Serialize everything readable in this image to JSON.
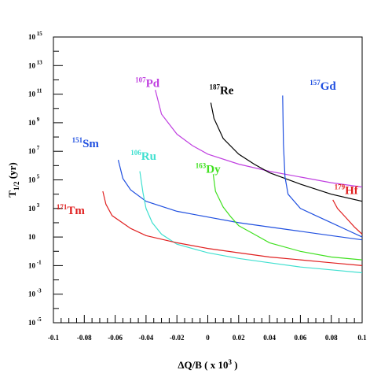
{
  "chart_data": {
    "type": "line",
    "xlabel": "ΔQ/B  ( x 10",
    "xlabel_sup": "3",
    "xlabel_end": ")",
    "ylabel": "T",
    "ylabel_sub": "1/2",
    "ylabel_end": " (yr)",
    "xlim": [
      -0.1,
      0.1
    ],
    "ylim_log10": [
      -5,
      15
    ],
    "log_y": true,
    "grid": false,
    "x_ticks": [
      {
        "v": -0.1,
        "label": "-0.1"
      },
      {
        "v": -0.08,
        "label": "-0.08"
      },
      {
        "v": -0.06,
        "label": "-0.06"
      },
      {
        "v": -0.04,
        "label": "-0.04"
      },
      {
        "v": -0.02,
        "label": "-0.02"
      },
      {
        "v": 0,
        "label": "0"
      },
      {
        "v": 0.02,
        "label": "0.02"
      },
      {
        "v": 0.04,
        "label": "0.04"
      },
      {
        "v": 0.06,
        "label": "0.06"
      },
      {
        "v": 0.08,
        "label": "0.08"
      },
      {
        "v": 0.1,
        "label": "0.1"
      }
    ],
    "y_ticks": [
      {
        "e": 15,
        "base": "10",
        "exp": "15"
      },
      {
        "e": 13,
        "base": "10",
        "exp": "13"
      },
      {
        "e": 11,
        "base": "10",
        "exp": "11"
      },
      {
        "e": 9,
        "base": "10",
        "exp": "9"
      },
      {
        "e": 7,
        "base": "10",
        "exp": "7"
      },
      {
        "e": 5,
        "base": "10",
        "exp": "5"
      },
      {
        "e": 3,
        "base": "10",
        "exp": "3"
      },
      {
        "e": 1,
        "base": "10",
        "exp": ""
      },
      {
        "e": -1,
        "base": "10",
        "exp": "-1"
      },
      {
        "e": -3,
        "base": "10",
        "exp": "-3"
      },
      {
        "e": -5,
        "base": "10",
        "exp": "-5"
      }
    ],
    "series": [
      {
        "mass": "107",
        "element": "Pd",
        "color": "#c040e0",
        "label_at": [
          -0.047,
          11.5
        ],
        "points": [
          [
            -0.034,
            11.3
          ],
          [
            -0.03,
            9.6
          ],
          [
            -0.02,
            8.2
          ],
          [
            -0.01,
            7.4
          ],
          [
            0,
            6.8
          ],
          [
            0.02,
            6.1
          ],
          [
            0.04,
            5.6
          ],
          [
            0.06,
            5.2
          ],
          [
            0.08,
            4.8
          ],
          [
            0.1,
            4.5
          ]
        ]
      },
      {
        "mass": "187",
        "element": "Re",
        "color": "#000000",
        "label_at": [
          0.001,
          11.0
        ],
        "points": [
          [
            0.002,
            10.4
          ],
          [
            0.004,
            9.3
          ],
          [
            0.01,
            7.9
          ],
          [
            0.02,
            6.8
          ],
          [
            0.03,
            6.1
          ],
          [
            0.04,
            5.5
          ],
          [
            0.06,
            4.7
          ],
          [
            0.08,
            4.0
          ],
          [
            0.1,
            3.5
          ]
        ]
      },
      {
        "mass": "157",
        "element": "Gd",
        "color": "#2050e0",
        "label_at": [
          0.066,
          11.3
        ],
        "points": [
          [
            0.0485,
            10.9
          ],
          [
            0.049,
            7.5
          ],
          [
            0.05,
            5.2
          ],
          [
            0.052,
            4.0
          ],
          [
            0.06,
            3.0
          ],
          [
            0.07,
            2.5
          ],
          [
            0.08,
            2.0
          ],
          [
            0.09,
            1.5
          ],
          [
            0.1,
            1.0
          ]
        ]
      },
      {
        "mass": "179",
        "element": "Hf",
        "color": "#e02020",
        "label_at": [
          0.082,
          4.0
        ],
        "points": [
          [
            0.081,
            3.6
          ],
          [
            0.084,
            3.0
          ],
          [
            0.09,
            2.3
          ],
          [
            0.095,
            1.7
          ],
          [
            0.1,
            1.2
          ]
        ]
      },
      {
        "mass": "151",
        "element": "Sm",
        "color": "#2050e0",
        "label_at": [
          -0.088,
          7.3
        ],
        "points": [
          [
            -0.058,
            6.4
          ],
          [
            -0.055,
            5.1
          ],
          [
            -0.05,
            4.3
          ],
          [
            -0.04,
            3.5
          ],
          [
            -0.02,
            2.8
          ],
          [
            0,
            2.4
          ],
          [
            0.02,
            2.0
          ],
          [
            0.04,
            1.7
          ],
          [
            0.06,
            1.4
          ],
          [
            0.08,
            1.1
          ],
          [
            0.1,
            0.8
          ]
        ]
      },
      {
        "mass": "106",
        "element": "Ru",
        "color": "#40e0d0",
        "label_at": [
          -0.05,
          6.4
        ],
        "points": [
          [
            -0.044,
            5.6
          ],
          [
            -0.042,
            4.1
          ],
          [
            -0.04,
            3.0
          ],
          [
            -0.036,
            2.0
          ],
          [
            -0.03,
            1.2
          ],
          [
            -0.02,
            0.5
          ],
          [
            0,
            -0.1
          ],
          [
            0.02,
            -0.5
          ],
          [
            0.04,
            -0.8
          ],
          [
            0.06,
            -1.1
          ],
          [
            0.08,
            -1.3
          ],
          [
            0.1,
            -1.5
          ]
        ]
      },
      {
        "mass": "163",
        "element": "Dy",
        "color": "#40e020",
        "label_at": [
          -0.008,
          5.5
        ],
        "points": [
          [
            0.0035,
            5.4
          ],
          [
            0.005,
            4.2
          ],
          [
            0.01,
            3.1
          ],
          [
            0.015,
            2.4
          ],
          [
            0.02,
            1.8
          ],
          [
            0.03,
            1.2
          ],
          [
            0.04,
            0.6
          ],
          [
            0.06,
            0.0
          ],
          [
            0.08,
            -0.4
          ],
          [
            0.1,
            -0.6
          ]
        ]
      },
      {
        "mass": "171",
        "element": "Tm",
        "color": "#e02020",
        "label_at": [
          -0.098,
          2.6
        ],
        "points": [
          [
            -0.068,
            4.2
          ],
          [
            -0.066,
            3.3
          ],
          [
            -0.062,
            2.5
          ],
          [
            -0.05,
            1.6
          ],
          [
            -0.04,
            1.1
          ],
          [
            -0.02,
            0.6
          ],
          [
            0,
            0.2
          ],
          [
            0.02,
            -0.1
          ],
          [
            0.04,
            -0.4
          ],
          [
            0.06,
            -0.6
          ],
          [
            0.08,
            -0.8
          ],
          [
            0.1,
            -1.0
          ]
        ]
      }
    ]
  }
}
